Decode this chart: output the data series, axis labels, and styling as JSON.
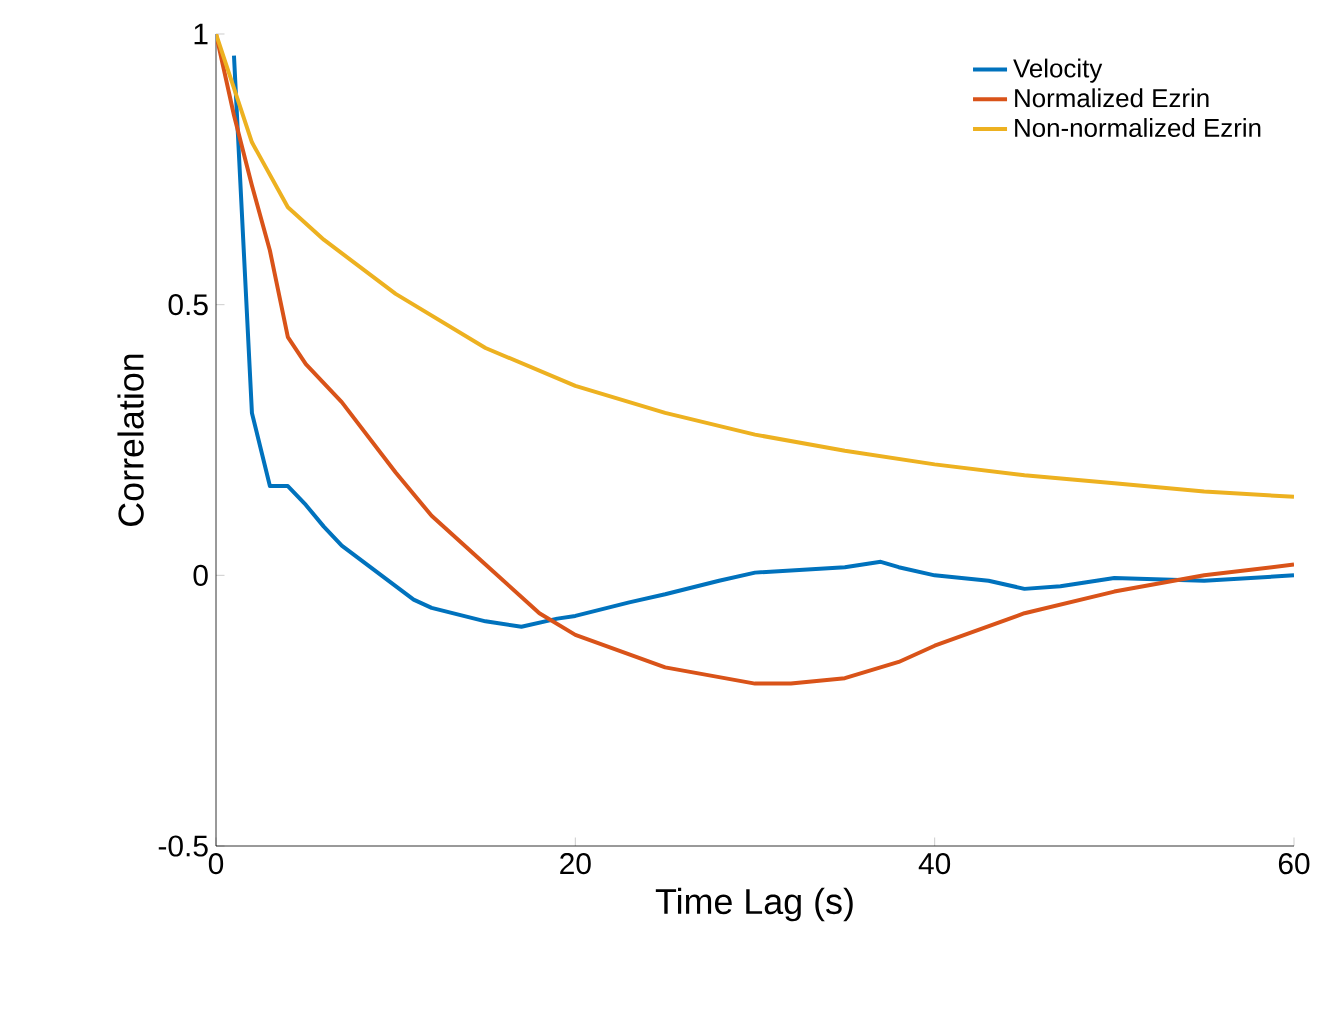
{
  "chart_data": {
    "type": "line",
    "xlabel": "Time Lag (s)",
    "ylabel": "Correlation",
    "xlim": [
      0,
      60
    ],
    "ylim": [
      -0.5,
      1
    ],
    "xticks": [
      0,
      20,
      40,
      60
    ],
    "yticks": [
      -0.5,
      0,
      0.5,
      1
    ],
    "legend": "top right",
    "grid": false,
    "marker": "none",
    "line_style": "solid",
    "series": [
      {
        "name": "Velocity",
        "color": "#0072bd",
        "x": [
          1,
          2,
          3,
          4,
          5,
          6,
          7,
          8,
          10,
          11,
          12,
          15,
          17,
          19,
          20,
          23,
          25,
          28,
          30,
          35,
          37,
          38,
          40,
          43,
          45,
          47,
          50,
          55,
          60
        ],
        "values": [
          0.96,
          0.3,
          0.165,
          0.165,
          0.13,
          0.09,
          0.055,
          0.03,
          -0.02,
          -0.045,
          -0.06,
          -0.085,
          -0.095,
          -0.08,
          -0.075,
          -0.05,
          -0.035,
          -0.01,
          0.005,
          0.015,
          0.025,
          0.015,
          0.0,
          -0.01,
          -0.025,
          -0.02,
          -0.005,
          -0.01,
          0.0
        ]
      },
      {
        "name": "Normalized Ezrin",
        "color": "#d95319",
        "x": [
          0,
          1,
          2,
          3,
          4,
          5,
          7,
          10,
          12,
          15,
          18,
          20,
          25,
          30,
          32,
          35,
          38,
          40,
          45,
          50,
          55,
          60
        ],
        "values": [
          1.0,
          0.85,
          0.72,
          0.6,
          0.44,
          0.39,
          0.32,
          0.19,
          0.11,
          0.02,
          -0.07,
          -0.11,
          -0.17,
          -0.2,
          -0.2,
          -0.19,
          -0.16,
          -0.13,
          -0.07,
          -0.03,
          0.0,
          0.02
        ]
      },
      {
        "name": "Non-normalized Ezrin",
        "color": "#edb120",
        "x": [
          0,
          2,
          4,
          6,
          10,
          15,
          20,
          25,
          30,
          35,
          40,
          45,
          50,
          55,
          60
        ],
        "values": [
          1.0,
          0.8,
          0.68,
          0.62,
          0.52,
          0.42,
          0.35,
          0.3,
          0.26,
          0.23,
          0.205,
          0.185,
          0.17,
          0.155,
          0.145
        ]
      }
    ]
  }
}
